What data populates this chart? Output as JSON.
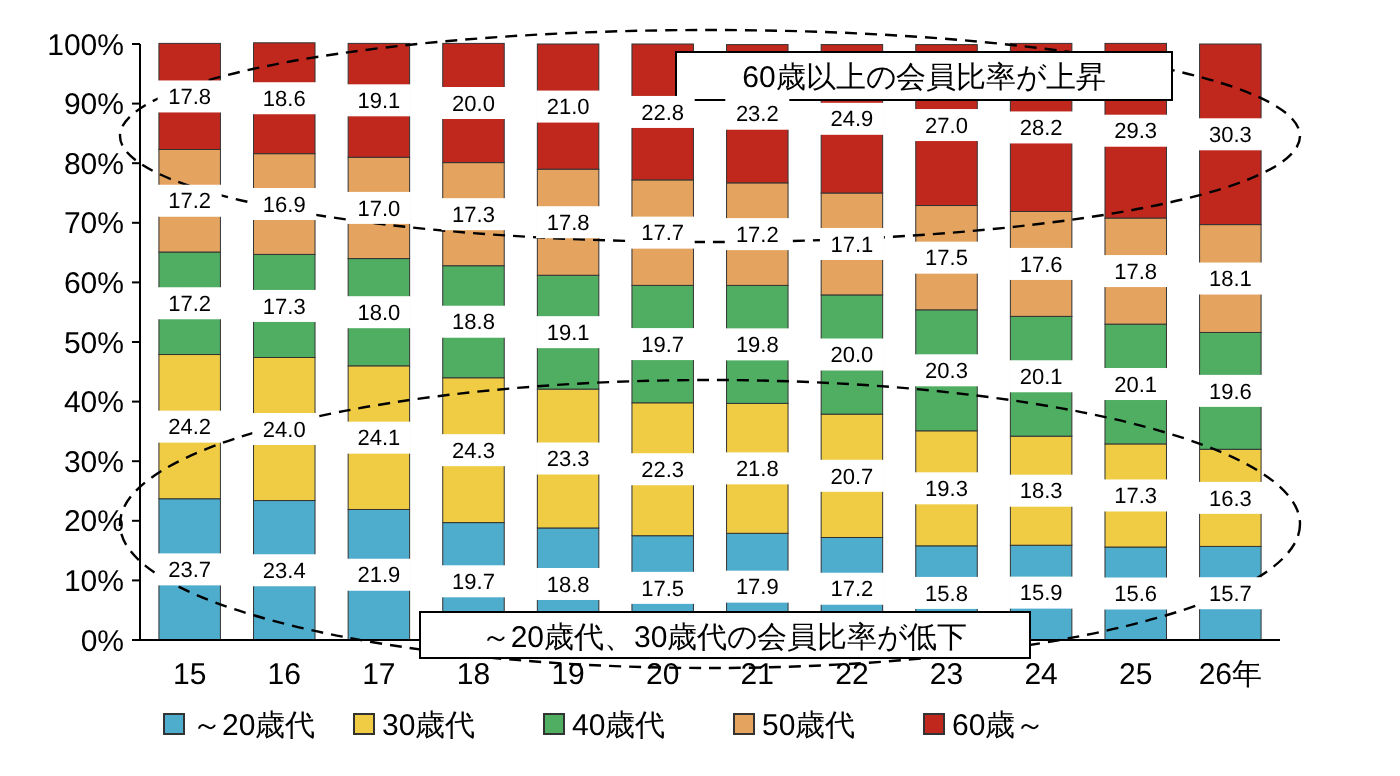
{
  "chart_data": {
    "type": "bar",
    "stacked": true,
    "legend": "bottom",
    "grid": false,
    "categories": [
      "15",
      "16",
      "17",
      "18",
      "19",
      "20",
      "21",
      "22",
      "23",
      "24",
      "25",
      "26年"
    ],
    "ylim": [
      0,
      100
    ],
    "yticks": [
      {
        "value": 0,
        "label": "0%"
      },
      {
        "value": 10,
        "label": "10%"
      },
      {
        "value": 20,
        "label": "20%"
      },
      {
        "value": 30,
        "label": "30%"
      },
      {
        "value": 40,
        "label": "40%"
      },
      {
        "value": 50,
        "label": "50%"
      },
      {
        "value": 60,
        "label": "60%"
      },
      {
        "value": 70,
        "label": "70%"
      },
      {
        "value": 80,
        "label": "80%"
      },
      {
        "value": 90,
        "label": "90%"
      },
      {
        "value": 100,
        "label": "100%"
      }
    ],
    "series": [
      {
        "name": "～20歳代",
        "color": "#4eaccc",
        "values": [
          23.7,
          23.4,
          21.9,
          19.7,
          18.8,
          17.5,
          17.9,
          17.2,
          15.8,
          15.9,
          15.6,
          15.7
        ],
        "value_labels": [
          "23.7",
          "23.4",
          "21.9",
          "19.7",
          "18.8",
          "17.5",
          "17.9",
          "17.2",
          "15.8",
          "15.9",
          "15.6",
          "15.7"
        ]
      },
      {
        "name": "30歳代",
        "color": "#f0cc44",
        "values": [
          24.2,
          24.0,
          24.1,
          24.3,
          23.3,
          22.3,
          21.8,
          20.7,
          19.3,
          18.3,
          17.3,
          16.3
        ],
        "value_labels": [
          "24.2",
          "24.0",
          "24.1",
          "24.3",
          "23.3",
          "22.3",
          "21.8",
          "20.7",
          "19.3",
          "18.3",
          "17.3",
          "16.3"
        ]
      },
      {
        "name": "40歳代",
        "color": "#4fae62",
        "values": [
          17.2,
          17.3,
          18.0,
          18.8,
          19.1,
          19.7,
          19.8,
          20.0,
          20.3,
          20.1,
          20.1,
          19.6
        ],
        "value_labels": [
          "17.2",
          "17.3",
          "18.0",
          "18.8",
          "19.1",
          "19.7",
          "19.8",
          "20.0",
          "20.3",
          "20.1",
          "20.1",
          "19.6"
        ]
      },
      {
        "name": "50歳代",
        "color": "#e4a460",
        "values": [
          17.2,
          16.9,
          17.0,
          17.3,
          17.8,
          17.7,
          17.2,
          17.1,
          17.5,
          17.6,
          17.8,
          18.1
        ],
        "value_labels": [
          "17.2",
          "16.9",
          "17.0",
          "17.3",
          "17.8",
          "17.7",
          "17.2",
          "17.1",
          "17.5",
          "17.6",
          "17.8",
          "18.1"
        ]
      },
      {
        "name": "60歳～",
        "color": "#c0281e",
        "values": [
          17.8,
          18.6,
          19.1,
          20.0,
          21.0,
          22.8,
          23.2,
          24.9,
          27.0,
          28.2,
          29.3,
          30.3
        ],
        "value_labels": [
          "17.8",
          "18.6",
          "19.1",
          "20.0",
          "21.0",
          "22.8",
          "23.2",
          "24.9",
          "27.0",
          "28.2",
          "29.3",
          "30.3"
        ]
      }
    ],
    "annotations": [
      "60歳以上の会員比率が上昇",
      "～20歳代、30歳代の会員比率が低下"
    ]
  }
}
